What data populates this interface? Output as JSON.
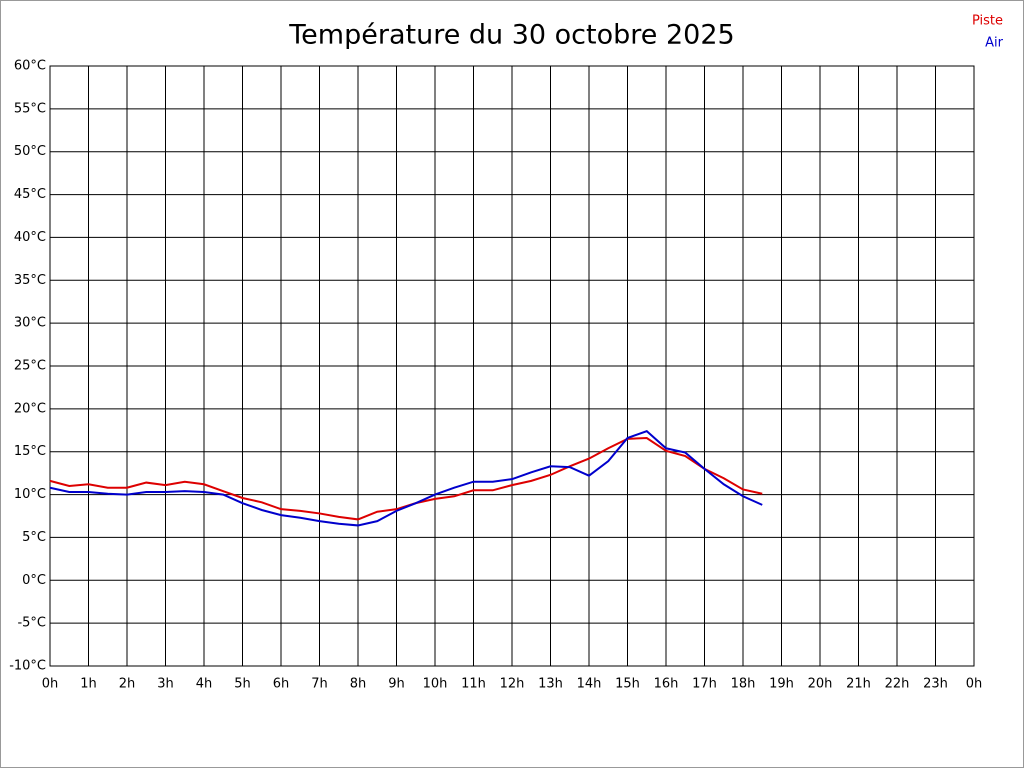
{
  "chart_data": {
    "type": "line",
    "title": "Température du 30 octobre 2025",
    "x": [
      0,
      0.5,
      1,
      1.5,
      2,
      2.5,
      3,
      3.5,
      4,
      4.5,
      5,
      5.5,
      6,
      6.5,
      7,
      7.5,
      8,
      8.5,
      9,
      9.5,
      10,
      10.5,
      11,
      11.5,
      12,
      12.5,
      13,
      13.5,
      14,
      14.5,
      15,
      15.5,
      16,
      16.5,
      17,
      17.5,
      18,
      18.5
    ],
    "series": [
      {
        "name": "Piste",
        "color": "#dd0000",
        "values": [
          11.6,
          11.0,
          11.2,
          10.8,
          10.8,
          11.4,
          11.1,
          11.5,
          11.2,
          10.4,
          9.6,
          9.1,
          8.3,
          8.1,
          7.8,
          7.4,
          7.1,
          8.0,
          8.3,
          9.0,
          9.5,
          9.8,
          10.5,
          10.5,
          11.1,
          11.6,
          12.3,
          13.3,
          14.2,
          15.4,
          16.5,
          16.6,
          15.1,
          14.5,
          13.0,
          11.9,
          10.6,
          10.1
        ]
      },
      {
        "name": "Air",
        "color": "#0000cc",
        "values": [
          10.8,
          10.3,
          10.3,
          10.1,
          10.0,
          10.3,
          10.3,
          10.4,
          10.3,
          10.0,
          9.0,
          8.2,
          7.6,
          7.3,
          6.9,
          6.6,
          6.4,
          6.9,
          8.1,
          9.0,
          10.0,
          10.8,
          11.5,
          11.5,
          11.8,
          12.6,
          13.3,
          13.2,
          12.2,
          13.9,
          16.6,
          17.4,
          15.4,
          14.9,
          13.0,
          11.2,
          9.8,
          8.8
        ]
      }
    ],
    "xlim": [
      0,
      24
    ],
    "xticks": [
      {
        "value": 0,
        "label": "0h"
      },
      {
        "value": 1,
        "label": "1h"
      },
      {
        "value": 2,
        "label": "2h"
      },
      {
        "value": 3,
        "label": "3h"
      },
      {
        "value": 4,
        "label": "4h"
      },
      {
        "value": 5,
        "label": "5h"
      },
      {
        "value": 6,
        "label": "6h"
      },
      {
        "value": 7,
        "label": "7h"
      },
      {
        "value": 8,
        "label": "8h"
      },
      {
        "value": 9,
        "label": "9h"
      },
      {
        "value": 10,
        "label": "10h"
      },
      {
        "value": 11,
        "label": "11h"
      },
      {
        "value": 12,
        "label": "12h"
      },
      {
        "value": 13,
        "label": "13h"
      },
      {
        "value": 14,
        "label": "14h"
      },
      {
        "value": 15,
        "label": "15h"
      },
      {
        "value": 16,
        "label": "16h"
      },
      {
        "value": 17,
        "label": "17h"
      },
      {
        "value": 18,
        "label": "18h"
      },
      {
        "value": 19,
        "label": "19h"
      },
      {
        "value": 20,
        "label": "20h"
      },
      {
        "value": 21,
        "label": "21h"
      },
      {
        "value": 22,
        "label": "22h"
      },
      {
        "value": 23,
        "label": "23h"
      },
      {
        "value": 24,
        "label": "0h"
      }
    ],
    "ylim": [
      -10,
      60
    ],
    "yticks": [
      {
        "value": 60,
        "label": "60°C"
      },
      {
        "value": 55,
        "label": "55°C"
      },
      {
        "value": 50,
        "label": "50°C"
      },
      {
        "value": 45,
        "label": "45°C"
      },
      {
        "value": 40,
        "label": "40°C"
      },
      {
        "value": 35,
        "label": "35°C"
      },
      {
        "value": 30,
        "label": "30°C"
      },
      {
        "value": 25,
        "label": "25°C"
      },
      {
        "value": 20,
        "label": "20°C"
      },
      {
        "value": 15,
        "label": "15°C"
      },
      {
        "value": 10,
        "label": "10°C"
      },
      {
        "value": 5,
        "label": "5°C"
      },
      {
        "value": 0,
        "label": "0°C"
      },
      {
        "value": -5,
        "label": "-5°C"
      },
      {
        "value": -10,
        "label": "-10°C"
      }
    ],
    "grid": true,
    "legend": "top-right"
  }
}
